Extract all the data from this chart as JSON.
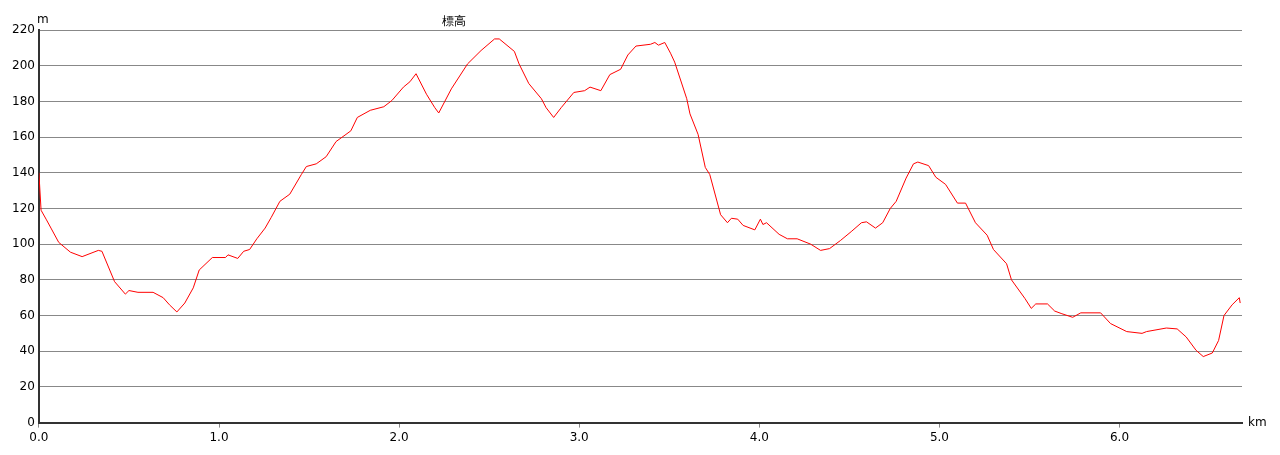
{
  "chart_data": {
    "type": "line",
    "title": "標高",
    "xlabel": "km",
    "ylabel": "m",
    "x": [
      0,
      0.012,
      0.04,
      0.067,
      0.11,
      0.175,
      0.24,
      0.33,
      0.35,
      0.42,
      0.48,
      0.5,
      0.55,
      0.634,
      0.69,
      0.725,
      0.766,
      0.81,
      0.857,
      0.89,
      0.963,
      1.036,
      1.05,
      1.104,
      1.137,
      1.17,
      1.21,
      1.256,
      1.29,
      1.338,
      1.393,
      1.457,
      1.485,
      1.54,
      1.595,
      1.65,
      1.705,
      1.732,
      1.768,
      1.84,
      1.915,
      1.96,
      2.024,
      2.06,
      2.094,
      2.152,
      2.198,
      2.22,
      2.29,
      2.38,
      2.455,
      2.53,
      2.556,
      2.64,
      2.666,
      2.72,
      2.79,
      2.816,
      2.858,
      2.9,
      2.97,
      3.03,
      3.06,
      3.12,
      3.17,
      3.23,
      3.27,
      3.315,
      3.396,
      3.42,
      3.44,
      3.475,
      3.507,
      3.53,
      3.597,
      3.615,
      3.66,
      3.7,
      3.725,
      3.785,
      3.823,
      3.845,
      3.88,
      3.91,
      3.975,
      4.006,
      4.02,
      4.04,
      4.11,
      4.156,
      4.21,
      4.285,
      4.34,
      4.39,
      4.45,
      4.51,
      4.567,
      4.595,
      4.645,
      4.685,
      4.727,
      4.76,
      4.815,
      4.856,
      4.88,
      4.94,
      4.98,
      5.034,
      5.1,
      5.145,
      5.2,
      5.265,
      5.3,
      5.373,
      5.4,
      5.475,
      5.51,
      5.535,
      5.6,
      5.64,
      5.68,
      5.74,
      5.785,
      5.895,
      5.95,
      6.04,
      6.125,
      6.15,
      6.26,
      6.32,
      6.37,
      6.425,
      6.465,
      6.515,
      6.55,
      6.58,
      6.625,
      6.665,
      6.67
    ],
    "series": [
      {
        "color": "#ff0000",
        "values": [
          140,
          119,
          114,
          109,
          101,
          95.5,
          93,
          96.5,
          96,
          79,
          72,
          74,
          73,
          73,
          70,
          66,
          62,
          67,
          75.5,
          85.5,
          92.5,
          92.5,
          94,
          92,
          96,
          97,
          103,
          109,
          115,
          124,
          128,
          139,
          143.5,
          145,
          149,
          157.5,
          161.5,
          163.5,
          171,
          175,
          177,
          180.5,
          188,
          191,
          195.5,
          184,
          176.5,
          173.5,
          187,
          201,
          208.5,
          215,
          215,
          208,
          201,
          190,
          181.5,
          176.5,
          171,
          176.5,
          185,
          186,
          188,
          186,
          195,
          198,
          206,
          211,
          212,
          213,
          211.5,
          213,
          207,
          202,
          181.5,
          173,
          161.5,
          143,
          139,
          116.5,
          112,
          114.5,
          114,
          110.5,
          108,
          114,
          111,
          112,
          105.5,
          103,
          103,
          100,
          96.5,
          97.5,
          102,
          107,
          112,
          112.5,
          109,
          112,
          120,
          124,
          137,
          145,
          146,
          144,
          137.5,
          133.5,
          123,
          123,
          112,
          105,
          97,
          89,
          80,
          69.5,
          64,
          66.5,
          66.5,
          62.5,
          61,
          59,
          61.5,
          61.5,
          55.5,
          51,
          50,
          51,
          53,
          52.5,
          48,
          40.5,
          37,
          39,
          46,
          60,
          66,
          70,
          67
        ]
      }
    ],
    "xlim": [
      0,
      6.68
    ],
    "ylim": [
      0,
      220
    ],
    "xticks": [
      {
        "value": 0,
        "label": "0.0"
      },
      {
        "value": 1,
        "label": "1.0"
      },
      {
        "value": 2,
        "label": "2.0"
      },
      {
        "value": 3,
        "label": "3.0"
      },
      {
        "value": 4,
        "label": "4.0"
      },
      {
        "value": 5,
        "label": "5.0"
      },
      {
        "value": 6,
        "label": "6.0"
      }
    ],
    "yticks": [
      0,
      20,
      40,
      60,
      80,
      100,
      120,
      140,
      160,
      180,
      200,
      220
    ],
    "grid": "y",
    "marker": "none",
    "line_style": "solid"
  }
}
